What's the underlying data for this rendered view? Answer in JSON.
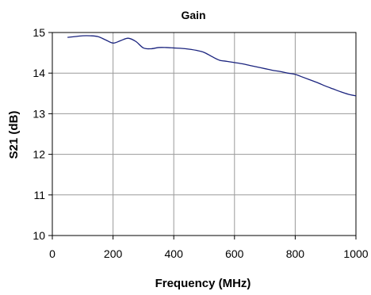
{
  "chart_data": {
    "type": "line",
    "title": "Gain",
    "xlabel": "Frequency (MHz)",
    "ylabel": "S21 (dB)",
    "xlim": [
      0,
      1000
    ],
    "ylim": [
      10,
      15
    ],
    "xticks": [
      "0",
      "200",
      "400",
      "600",
      "800",
      "1000"
    ],
    "yticks": [
      "10",
      "11",
      "12",
      "13",
      "14",
      "15"
    ],
    "grid": true,
    "legend": "none",
    "series": [
      {
        "color": "#1a237e",
        "x": [
          50,
          75,
          100,
          125,
          150,
          175,
          200,
          225,
          250,
          275,
          300,
          325,
          350,
          375,
          400,
          425,
          450,
          475,
          500,
          525,
          550,
          575,
          600,
          625,
          650,
          675,
          700,
          725,
          750,
          775,
          800,
          825,
          850,
          875,
          900,
          925,
          950,
          975,
          1000
        ],
        "y": [
          14.88,
          14.9,
          14.92,
          14.92,
          14.9,
          14.82,
          14.74,
          14.8,
          14.86,
          14.78,
          14.62,
          14.6,
          14.63,
          14.63,
          14.62,
          14.61,
          14.59,
          14.56,
          14.51,
          14.41,
          14.32,
          14.29,
          14.26,
          14.23,
          14.19,
          14.15,
          14.11,
          14.07,
          14.04,
          14.0,
          13.97,
          13.9,
          13.83,
          13.76,
          13.68,
          13.61,
          13.54,
          13.48,
          13.44
        ]
      }
    ]
  }
}
